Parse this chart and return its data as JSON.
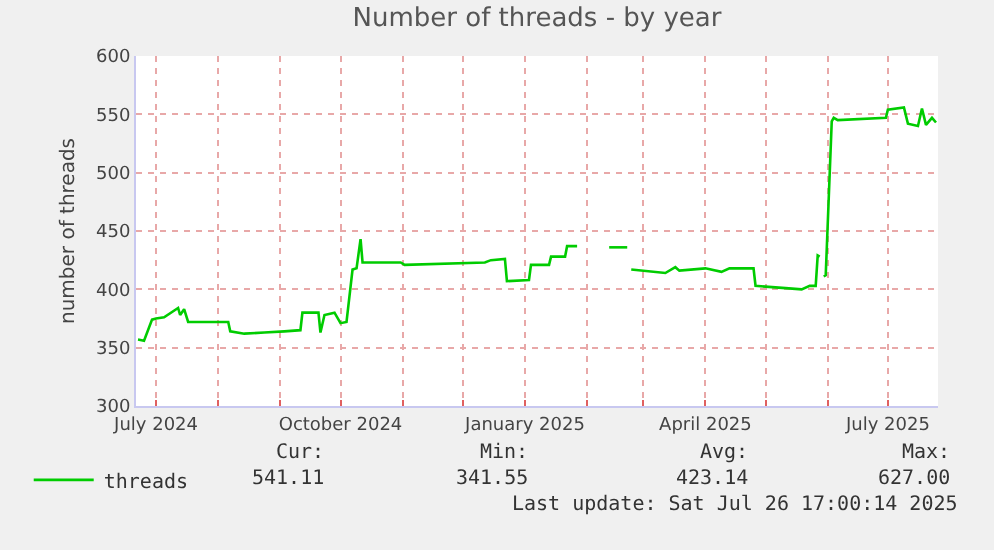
{
  "chart_data": {
    "type": "line",
    "title": "Number of threads - by year",
    "ylabel": "number of threads",
    "x": [
      "2024-06-22",
      "2024-06-25",
      "2024-06-29",
      "2024-07-01",
      "2024-07-05",
      "2024-07-12",
      "2024-07-13",
      "2024-07-15",
      "2024-07-17",
      "2024-08-06",
      "2024-08-07",
      "2024-08-14",
      "2024-08-24",
      "2024-09-03",
      "2024-09-11",
      "2024-09-12",
      "2024-09-20",
      "2024-09-21",
      "2024-09-23",
      "2024-09-28",
      "2024-10-01",
      "2024-10-04",
      "2024-10-07",
      "2024-10-09",
      "2024-10-11",
      "2024-10-12",
      "2024-10-31",
      "2024-11-02",
      "2024-12-12",
      "2024-12-15",
      "2024-12-22",
      "2024-12-23",
      "2025-01-03",
      "2025-01-04",
      "2025-01-13",
      "2025-01-14",
      "2025-01-21",
      "2025-01-22",
      "2025-01-27",
      "2025-01-28",
      "2025-02-12",
      "2025-02-21",
      "2025-02-22",
      "2025-02-23",
      "2025-03-12",
      "2025-03-17",
      "2025-03-19",
      "2025-04-01",
      "2025-04-09",
      "2025-04-13",
      "2025-04-25",
      "2025-04-26",
      "2025-05-11",
      "2025-05-19",
      "2025-05-23",
      "2025-05-26",
      "2025-05-27",
      "2025-05-28",
      "2025-05-29",
      "2025-05-30",
      "2025-05-31",
      "2025-06-03",
      "2025-06-04",
      "2025-06-06",
      "2025-06-30",
      "2025-07-01",
      "2025-07-09",
      "2025-07-11",
      "2025-07-16",
      "2025-07-18",
      "2025-07-20",
      "2025-07-23",
      "2025-07-25"
    ],
    "series": [
      {
        "name": "threads",
        "color": "#00cc00",
        "values": [
          357,
          356,
          374,
          375,
          376,
          384,
          378,
          383,
          372,
          372,
          364,
          362,
          363,
          364,
          365,
          380,
          380,
          363,
          378,
          380,
          371,
          372,
          417,
          418,
          443,
          423,
          423,
          421,
          423,
          425,
          426,
          407,
          408,
          421,
          421,
          428,
          428,
          437,
          437,
          null,
          436,
          436,
          null,
          417,
          414,
          419,
          416,
          418,
          415,
          418,
          418,
          403,
          401,
          400,
          403,
          403,
          429,
          428,
          null,
          411,
          412,
          544,
          547,
          545,
          547,
          554,
          556,
          542,
          540,
          555,
          541,
          547,
          543
        ]
      }
    ],
    "xlim": [
      "2024-06-21",
      "2025-07-26"
    ],
    "xticks": [
      {
        "value": "2024-07-01",
        "label": "July 2024"
      },
      {
        "value": "2024-08-01",
        "label": null
      },
      {
        "value": "2024-09-01",
        "label": null
      },
      {
        "value": "2024-10-01",
        "label": "October 2024"
      },
      {
        "value": "2024-11-01",
        "label": null
      },
      {
        "value": "2024-12-01",
        "label": null
      },
      {
        "value": "2025-01-01",
        "label": "January 2025"
      },
      {
        "value": "2025-02-01",
        "label": null
      },
      {
        "value": "2025-03-01",
        "label": null
      },
      {
        "value": "2025-04-01",
        "label": "April 2025"
      },
      {
        "value": "2025-05-01",
        "label": null
      },
      {
        "value": "2025-06-01",
        "label": null
      },
      {
        "value": "2025-07-01",
        "label": "July 2025"
      }
    ],
    "ylim": [
      300,
      600
    ],
    "yticks": [
      300,
      350,
      400,
      450,
      500,
      550,
      600
    ],
    "grid": true,
    "legend": "bottom left",
    "marker": "none",
    "line_style": "solid",
    "annotations": [
      "Cur:",
      "Min:",
      "Avg:",
      "Max:",
      "541.11",
      "341.55",
      "423.14",
      "627.00",
      "Last update: Sat Jul 26 17:00:14 2025"
    ]
  }
}
